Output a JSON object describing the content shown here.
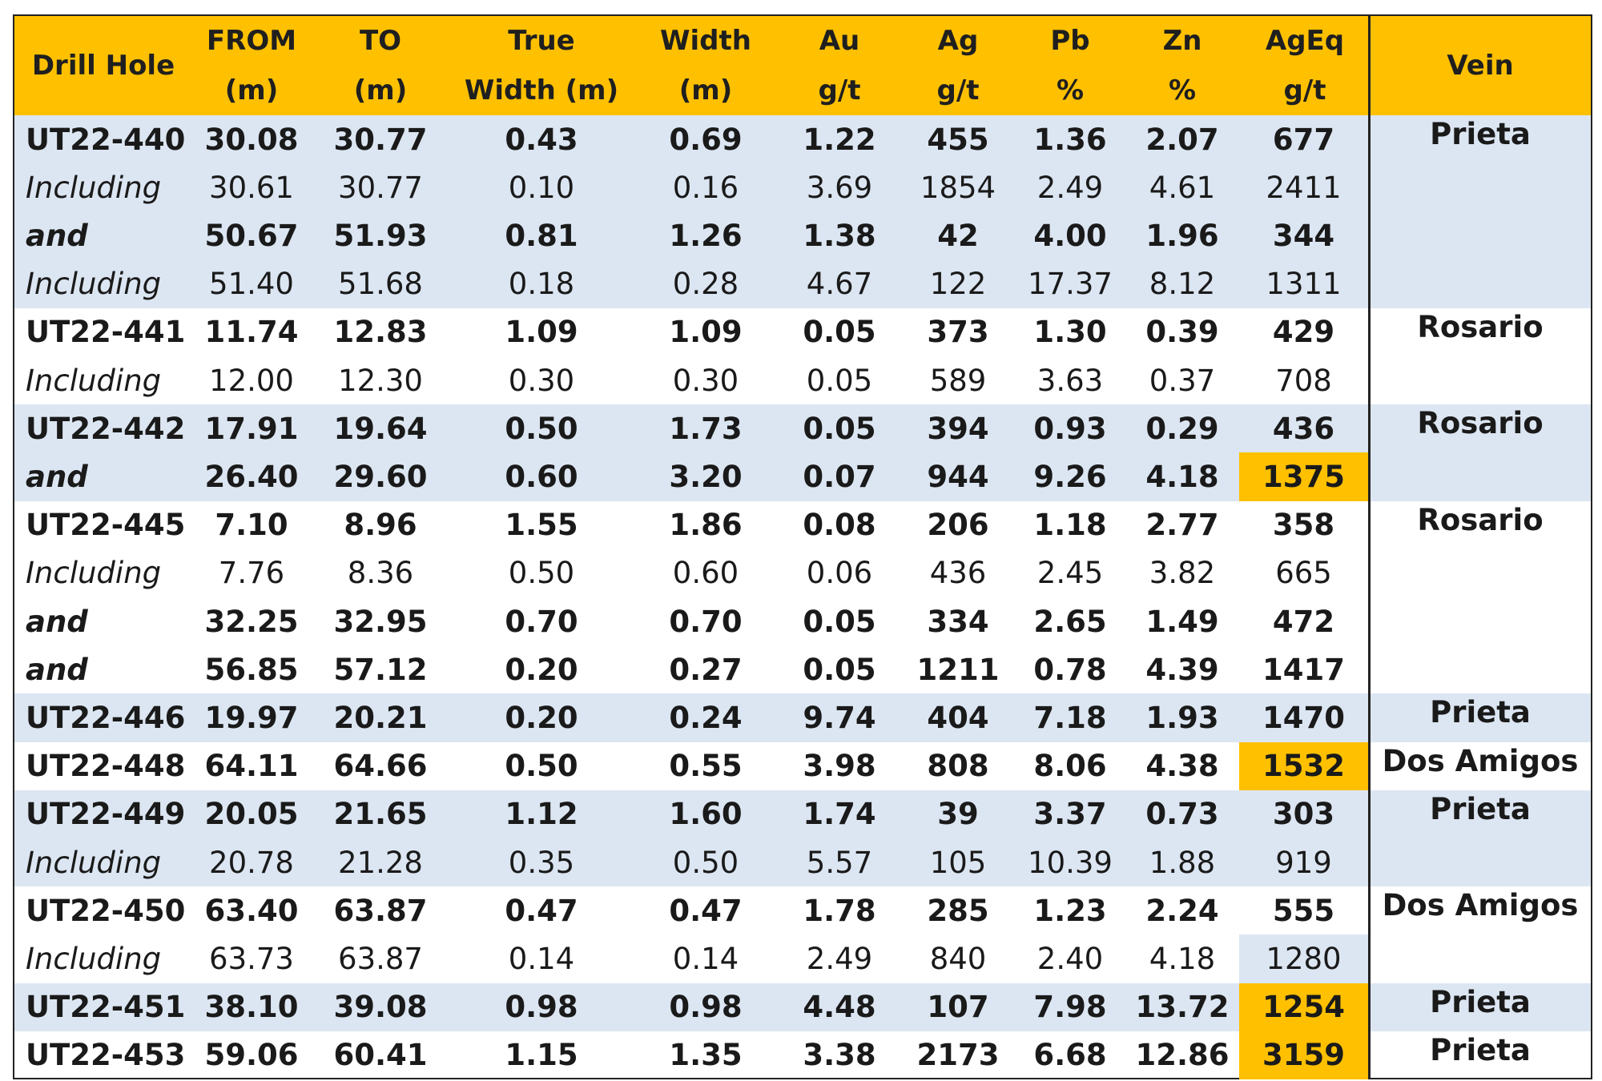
{
  "headers": [
    {
      "line1": "Drill Hole",
      "line2": ""
    },
    {
      "line1": "FROM",
      "line2": "(m)"
    },
    {
      "line1": "TO",
      "line2": "(m)"
    },
    {
      "line1": "True",
      "line2": "Width (m)"
    },
    {
      "line1": "Width",
      "line2": "(m)"
    },
    {
      "line1": "Au",
      "line2": "g/t"
    },
    {
      "line1": "Ag",
      "line2": "g/t"
    },
    {
      "line1": "Pb",
      "line2": "%"
    },
    {
      "line1": "Zn",
      "line2": "%"
    },
    {
      "line1": "AgEq",
      "line2": "g/t"
    },
    {
      "line1": "Vein",
      "line2": ""
    }
  ],
  "rows": [
    {
      "hole": "UT22-440",
      "from": "30.08",
      "to": "30.77",
      "true_width": "0.43",
      "width": "0.69",
      "au": "1.22",
      "ag": "455",
      "pb": "1.36",
      "zn": "2.07",
      "ageq": "677",
      "vein": "Prieta",
      "bold": true,
      "italic": false,
      "shade": true,
      "ageq_highlight": ""
    },
    {
      "hole": "Including",
      "from": "30.61",
      "to": "30.77",
      "true_width": "0.10",
      "width": "0.16",
      "au": "3.69",
      "ag": "1854",
      "pb": "2.49",
      "zn": "4.61",
      "ageq": "2411",
      "vein": "",
      "bold": false,
      "italic": true,
      "shade": true,
      "ageq_highlight": ""
    },
    {
      "hole": "and",
      "from": "50.67",
      "to": "51.93",
      "true_width": "0.81",
      "width": "1.26",
      "au": "1.38",
      "ag": "42",
      "pb": "4.00",
      "zn": "1.96",
      "ageq": "344",
      "vein": "",
      "bold": true,
      "italic": true,
      "shade": true,
      "ageq_highlight": ""
    },
    {
      "hole": "Including",
      "from": "51.40",
      "to": "51.68",
      "true_width": "0.18",
      "width": "0.28",
      "au": "4.67",
      "ag": "122",
      "pb": "17.37",
      "zn": "8.12",
      "ageq": "1311",
      "vein": "",
      "bold": false,
      "italic": true,
      "shade": true,
      "ageq_highlight": ""
    },
    {
      "hole": "UT22-441",
      "from": "11.74",
      "to": "12.83",
      "true_width": "1.09",
      "width": "1.09",
      "au": "0.05",
      "ag": "373",
      "pb": "1.30",
      "zn": "0.39",
      "ageq": "429",
      "vein": "Rosario",
      "bold": true,
      "italic": false,
      "shade": false,
      "ageq_highlight": ""
    },
    {
      "hole": "Including",
      "from": "12.00",
      "to": "12.30",
      "true_width": "0.30",
      "width": "0.30",
      "au": "0.05",
      "ag": "589",
      "pb": "3.63",
      "zn": "0.37",
      "ageq": "708",
      "vein": "",
      "bold": false,
      "italic": true,
      "shade": false,
      "ageq_highlight": ""
    },
    {
      "hole": "UT22-442",
      "from": "17.91",
      "to": "19.64",
      "true_width": "0.50",
      "width": "1.73",
      "au": "0.05",
      "ag": "394",
      "pb": "0.93",
      "zn": "0.29",
      "ageq": "436",
      "vein": "Rosario",
      "bold": true,
      "italic": false,
      "shade": true,
      "ageq_highlight": ""
    },
    {
      "hole": "and",
      "from": "26.40",
      "to": "29.60",
      "true_width": "0.60",
      "width": "3.20",
      "au": "0.07",
      "ag": "944",
      "pb": "9.26",
      "zn": "4.18",
      "ageq": "1375",
      "vein": "",
      "bold": true,
      "italic": true,
      "shade": true,
      "ageq_highlight": "gold"
    },
    {
      "hole": "UT22-445",
      "from": "7.10",
      "to": "8.96",
      "true_width": "1.55",
      "width": "1.86",
      "au": "0.08",
      "ag": "206",
      "pb": "1.18",
      "zn": "2.77",
      "ageq": "358",
      "vein": "Rosario",
      "bold": true,
      "italic": false,
      "shade": false,
      "ageq_highlight": ""
    },
    {
      "hole": "Including",
      "from": "7.76",
      "to": "8.36",
      "true_width": "0.50",
      "width": "0.60",
      "au": "0.06",
      "ag": "436",
      "pb": "2.45",
      "zn": "3.82",
      "ageq": "665",
      "vein": "",
      "bold": false,
      "italic": true,
      "shade": false,
      "ageq_highlight": ""
    },
    {
      "hole": "and",
      "from": "32.25",
      "to": "32.95",
      "true_width": "0.70",
      "width": "0.70",
      "au": "0.05",
      "ag": "334",
      "pb": "2.65",
      "zn": "1.49",
      "ageq": "472",
      "vein": "",
      "bold": true,
      "italic": true,
      "shade": false,
      "ageq_highlight": ""
    },
    {
      "hole": "and",
      "from": "56.85",
      "to": "57.12",
      "true_width": "0.20",
      "width": "0.27",
      "au": "0.05",
      "ag": "1211",
      "pb": "0.78",
      "zn": "4.39",
      "ageq": "1417",
      "vein": "",
      "bold": true,
      "italic": true,
      "shade": false,
      "ageq_highlight": ""
    },
    {
      "hole": "UT22-446",
      "from": "19.97",
      "to": "20.21",
      "true_width": "0.20",
      "width": "0.24",
      "au": "9.74",
      "ag": "404",
      "pb": "7.18",
      "zn": "1.93",
      "ageq": "1470",
      "vein": "Prieta",
      "bold": true,
      "italic": false,
      "shade": true,
      "ageq_highlight": ""
    },
    {
      "hole": "UT22-448",
      "from": "64.11",
      "to": "64.66",
      "true_width": "0.50",
      "width": "0.55",
      "au": "3.98",
      "ag": "808",
      "pb": "8.06",
      "zn": "4.38",
      "ageq": "1532",
      "vein": "Dos Amigos",
      "bold": true,
      "italic": false,
      "shade": false,
      "ageq_highlight": "gold"
    },
    {
      "hole": "UT22-449",
      "from": "20.05",
      "to": "21.65",
      "true_width": "1.12",
      "width": "1.60",
      "au": "1.74",
      "ag": "39",
      "pb": "3.37",
      "zn": "0.73",
      "ageq": "303",
      "vein": "Prieta",
      "bold": true,
      "italic": false,
      "shade": true,
      "ageq_highlight": ""
    },
    {
      "hole": "Including",
      "from": "20.78",
      "to": "21.28",
      "true_width": "0.35",
      "width": "0.50",
      "au": "5.57",
      "ag": "105",
      "pb": "10.39",
      "zn": "1.88",
      "ageq": "919",
      "vein": "",
      "bold": false,
      "italic": true,
      "shade": true,
      "ageq_highlight": ""
    },
    {
      "hole": "UT22-450",
      "from": "63.40",
      "to": "63.87",
      "true_width": "0.47",
      "width": "0.47",
      "au": "1.78",
      "ag": "285",
      "pb": "1.23",
      "zn": "2.24",
      "ageq": "555",
      "vein": "Dos Amigos",
      "bold": true,
      "italic": false,
      "shade": false,
      "ageq_highlight": ""
    },
    {
      "hole": "Including",
      "from": "63.73",
      "to": "63.87",
      "true_width": "0.14",
      "width": "0.14",
      "au": "2.49",
      "ag": "840",
      "pb": "2.40",
      "zn": "4.18",
      "ageq": "1280",
      "vein": "",
      "bold": false,
      "italic": true,
      "shade": false,
      "ageq_highlight": "blue"
    },
    {
      "hole": "UT22-451",
      "from": "38.10",
      "to": "39.08",
      "true_width": "0.98",
      "width": "0.98",
      "au": "4.48",
      "ag": "107",
      "pb": "7.98",
      "zn": "13.72",
      "ageq": "1254",
      "vein": "Prieta",
      "bold": true,
      "italic": false,
      "shade": true,
      "ageq_highlight": "gold"
    },
    {
      "hole": "UT22-453",
      "from": "59.06",
      "to": "60.41",
      "true_width": "1.15",
      "width": "1.35",
      "au": "3.38",
      "ag": "2173",
      "pb": "6.68",
      "zn": "12.86",
      "ageq": "3159",
      "vein": "Prieta",
      "bold": true,
      "italic": false,
      "shade": false,
      "ageq_highlight": "gold"
    }
  ],
  "colors": {
    "header": "#FFC000",
    "row_shade": "#DCE6F2",
    "highlight": "#FFC000"
  }
}
